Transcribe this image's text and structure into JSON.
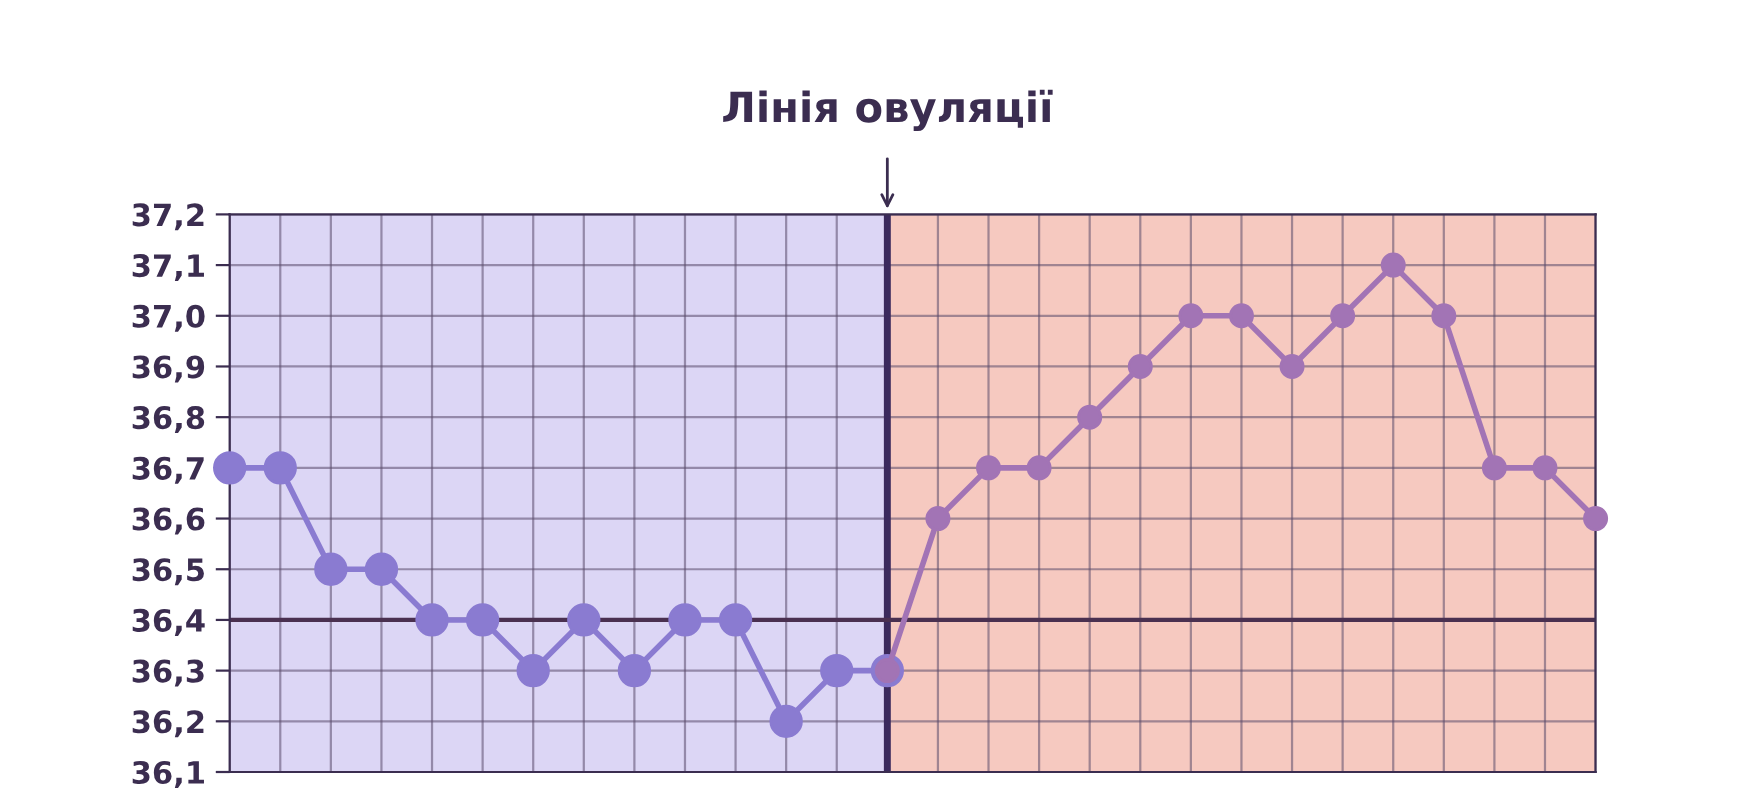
{
  "chart_data": {
    "type": "line",
    "categories": [
      null,
      null,
      null,
      null,
      null,
      null,
      null,
      null,
      null,
      null,
      null,
      null,
      null,
      null,
      null,
      null,
      null,
      null,
      null,
      null,
      null,
      null,
      null,
      null,
      null,
      null,
      null,
      null
    ],
    "series": [
      {
        "color": "#8a7bd1",
        "values": [
          36.7,
          36.7,
          36.5,
          36.5,
          36.4,
          36.4,
          36.3,
          36.4,
          36.3,
          36.4,
          36.4,
          36.2,
          36.3,
          36.3,
          null,
          null,
          null,
          null,
          null,
          null,
          null,
          null,
          null,
          null,
          null,
          null,
          null,
          null
        ]
      },
      {
        "color": "#a274b5",
        "values": [
          null,
          null,
          null,
          null,
          null,
          null,
          null,
          null,
          null,
          null,
          null,
          null,
          null,
          36.3,
          36.6,
          36.7,
          36.7,
          36.8,
          36.9,
          37.0,
          37.0,
          36.9,
          37.0,
          37.1,
          37.0,
          36.7,
          36.7,
          36.6
        ]
      }
    ],
    "ylim": [
      36.1,
      37.2
    ],
    "yticks": [
      {
        "value": 36.1,
        "label": "36,1"
      },
      {
        "value": 36.2,
        "label": "36,2"
      },
      {
        "value": 36.3,
        "label": "36,3"
      },
      {
        "value": 36.4,
        "label": "36,4"
      },
      {
        "value": 36.5,
        "label": "36,5"
      },
      {
        "value": 36.6,
        "label": "36,6"
      },
      {
        "value": 36.7,
        "label": "36,7"
      },
      {
        "value": 36.8,
        "label": "36,8"
      },
      {
        "value": 36.9,
        "label": "36,9"
      },
      {
        "value": 37.0,
        "label": "37,0"
      },
      {
        "value": 37.1,
        "label": "37,1"
      },
      {
        "value": 37.2,
        "label": "37,2"
      }
    ],
    "annotations": [
      "Лінія овуляції"
    ],
    "ref_lines": [
      {
        "axis": "y",
        "value": 36.4,
        "color": "#4a3050"
      }
    ],
    "grid": true,
    "marker": "circle",
    "line_style": "solid",
    "legend": false,
    "tick_labels": "y"
  }
}
